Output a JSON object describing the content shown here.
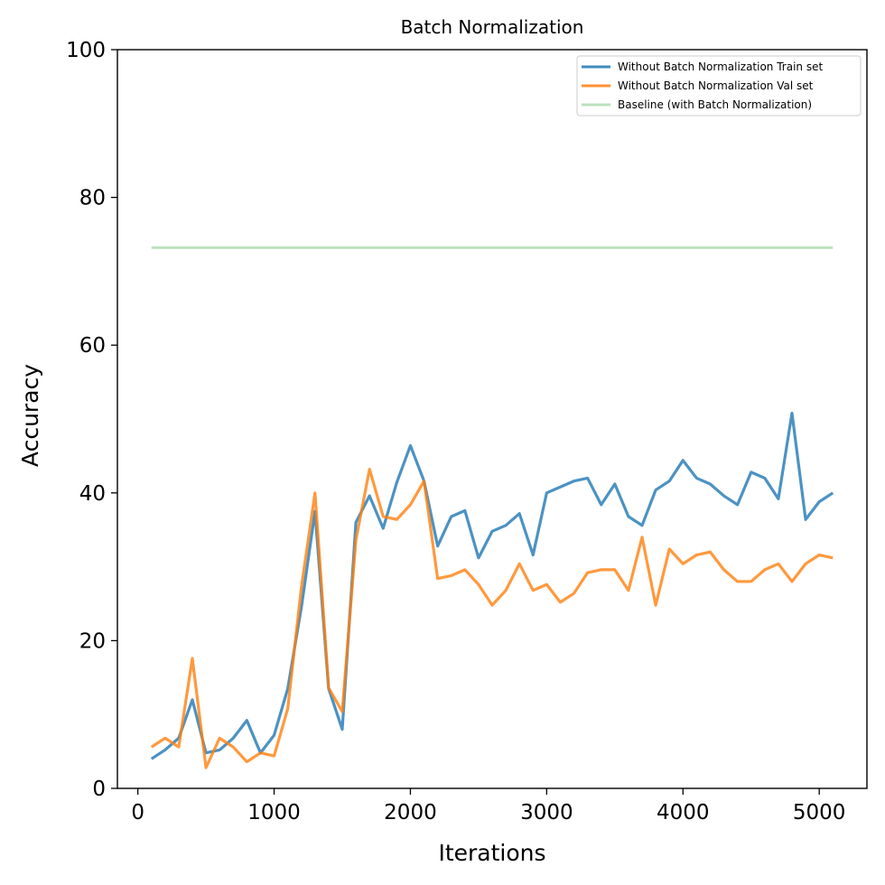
{
  "chart_data": {
    "type": "line",
    "title": "Batch Normalization",
    "xlabel": "Iterations",
    "ylabel": "Accuracy",
    "xlim": [
      -150,
      5350
    ],
    "ylim": [
      0,
      100
    ],
    "xticks": [
      0,
      1000,
      2000,
      3000,
      4000,
      5000
    ],
    "yticks": [
      0,
      20,
      40,
      60,
      80,
      100
    ],
    "grid": false,
    "legend_position": "top-right",
    "x": [
      100,
      200,
      300,
      400,
      500,
      600,
      700,
      800,
      900,
      1000,
      1100,
      1200,
      1300,
      1400,
      1500,
      1600,
      1700,
      1800,
      1900,
      2000,
      2100,
      2200,
      2300,
      2400,
      2500,
      2600,
      2700,
      2800,
      2900,
      3000,
      3100,
      3200,
      3300,
      3400,
      3500,
      3600,
      3700,
      3800,
      3900,
      4000,
      4100,
      4200,
      4300,
      4400,
      4500,
      4600,
      4700,
      4800,
      4900,
      5000,
      5100
    ],
    "series": [
      {
        "name": "Without Batch Normalization Train set",
        "color": "#1f77b4",
        "values": [
          4,
          5.2,
          6.8,
          12,
          4.8,
          5.2,
          6.8,
          9.2,
          4.8,
          7.2,
          13.5,
          24.5,
          37.5,
          13.5,
          8,
          36,
          39.6,
          35.2,
          41.4,
          46.4,
          41.6,
          32.8,
          36.8,
          37.6,
          31.2,
          34.8,
          35.6,
          37.2,
          31.6,
          40,
          40.8,
          41.6,
          42,
          38.4,
          41.2,
          36.8,
          35.6,
          40.4,
          41.6,
          44.4,
          42,
          41.2,
          39.6,
          38.4,
          42.8,
          42,
          39.2,
          50.8,
          36.4,
          38.8,
          40
        ]
      },
      {
        "name": "Without Batch Normalization Val set",
        "color": "#ff7f0e",
        "values": [
          5.6,
          6.8,
          5.6,
          17.6,
          2.8,
          6.8,
          5.6,
          3.6,
          4.8,
          4.4,
          10.8,
          27.2,
          40,
          13.6,
          10.4,
          33.6,
          43.2,
          36.8,
          36.4,
          38.4,
          41.6,
          28.4,
          28.8,
          29.6,
          27.6,
          24.8,
          26.8,
          30.4,
          26.8,
          27.6,
          25.2,
          26.4,
          29.2,
          29.6,
          29.6,
          26.8,
          34,
          24.8,
          32.4,
          30.4,
          31.6,
          32,
          29.6,
          28,
          28,
          29.6,
          30.4,
          28,
          30.4,
          31.6,
          31.2
        ]
      },
      {
        "name": "Baseline (with Batch Normalization)",
        "color": "#a6d6a8",
        "values": [
          73.2,
          73.2,
          73.2,
          73.2,
          73.2,
          73.2,
          73.2,
          73.2,
          73.2,
          73.2,
          73.2,
          73.2,
          73.2,
          73.2,
          73.2,
          73.2,
          73.2,
          73.2,
          73.2,
          73.2,
          73.2,
          73.2,
          73.2,
          73.2,
          73.2,
          73.2,
          73.2,
          73.2,
          73.2,
          73.2,
          73.2,
          73.2,
          73.2,
          73.2,
          73.2,
          73.2,
          73.2,
          73.2,
          73.2,
          73.2,
          73.2,
          73.2,
          73.2,
          73.2,
          73.2,
          73.2,
          73.2,
          73.2,
          73.2,
          73.2,
          73.2
        ]
      }
    ]
  }
}
